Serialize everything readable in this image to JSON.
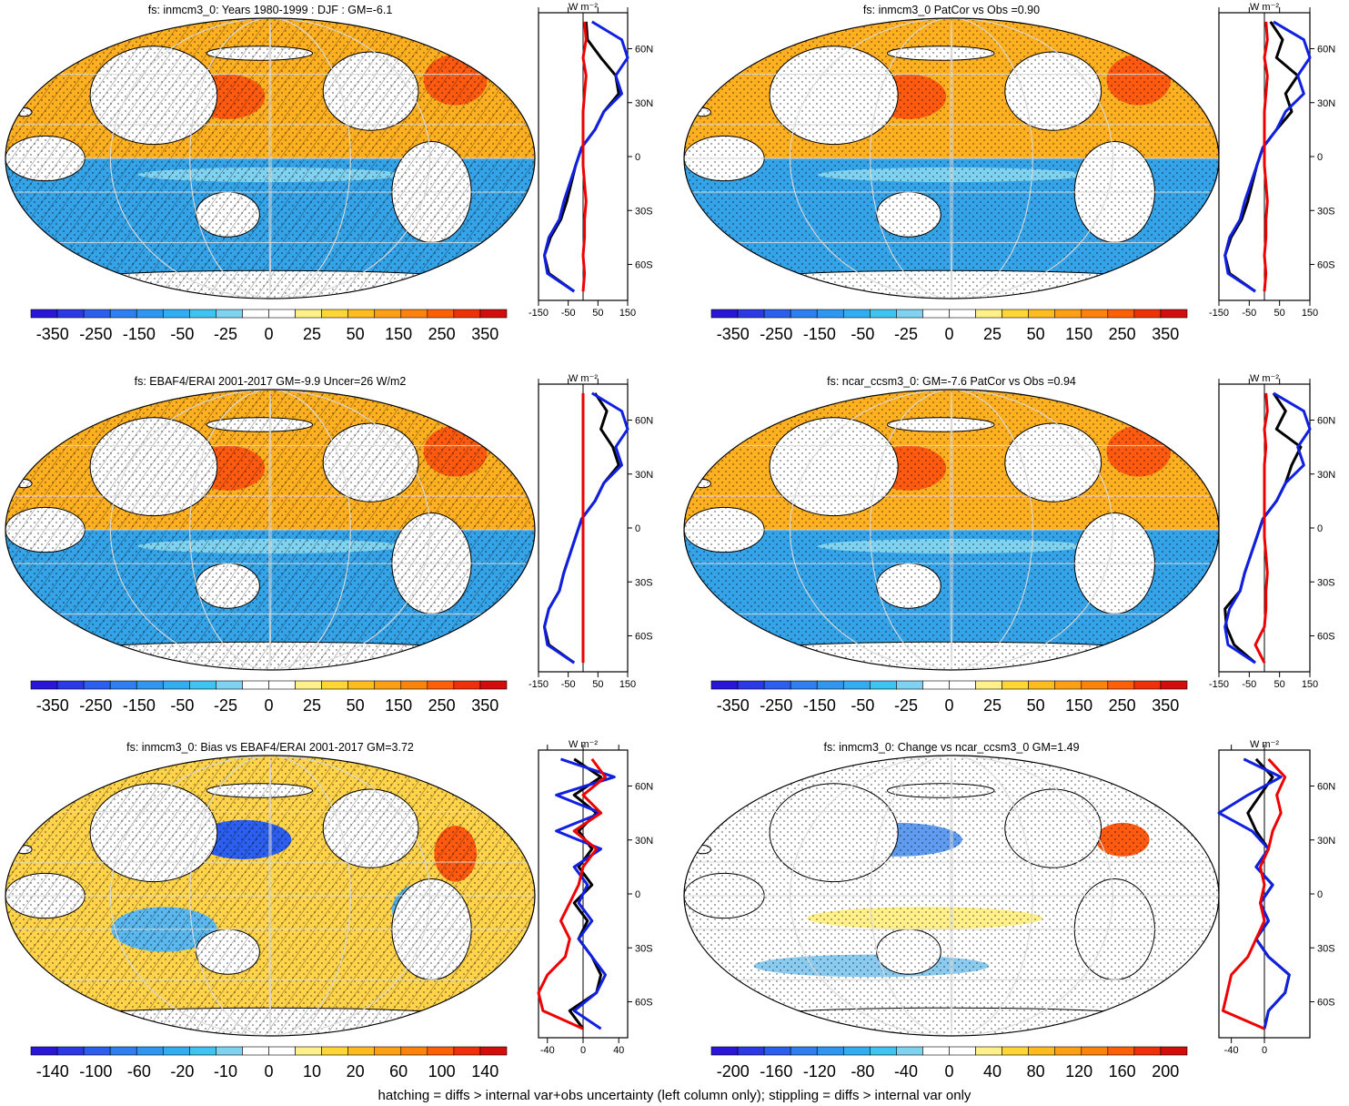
{
  "footnote": "hatching = diffs > internal var+obs uncertainty (left column only); stippling = diffs > internal var only",
  "palettes": {
    "full": [
      "#2a16d8",
      "#2b3ae6",
      "#2c5ff0",
      "#2f7ff2",
      "#2f97f2",
      "#30aef1",
      "#3ec4f0",
      "#7fd3f0",
      "#ffffff",
      "#ffffff",
      "#fff08a",
      "#ffd633",
      "#ffbc1e",
      "#ffa014",
      "#ff820a",
      "#ff6005",
      "#f03008",
      "#d40c0c"
    ],
    "bias": [
      "#2a16d8",
      "#2b3ae6",
      "#2c5ff0",
      "#2f7ff2",
      "#2f97f2",
      "#30aef1",
      "#3ec4f0",
      "#7fd3f0",
      "#ffffff",
      "#ffffff",
      "#fff08a",
      "#ffd633",
      "#ffbc1e",
      "#ffa014",
      "#ff820a",
      "#ff6005",
      "#f03008",
      "#d40c0c"
    ]
  },
  "line_colors": {
    "model": "#000000",
    "obs": "#1020e0",
    "diff": "#ee0000"
  },
  "map_colors": {
    "land": "#ffffff",
    "warm": "#ffb020",
    "cool": "#35a3e8",
    "hot": "#ff5a10",
    "grid": "#d8d8d8"
  },
  "panels": [
    {
      "title": "fs: inmcm3_0: Years 1980-1999 : DJF : GM=-6.1",
      "map_style": "full",
      "hatched": true,
      "colorbar_labels": [
        "-350",
        "-250",
        "-150",
        "-50",
        "-25",
        "0",
        "25",
        "50",
        "150",
        "250",
        "350"
      ],
      "profile": {
        "xticks": [
          "-150",
          "-50",
          "50",
          "150"
        ],
        "xlim": [
          -150,
          150
        ],
        "ylabels": [
          "60N",
          "30N",
          "0",
          "30S",
          "60S"
        ],
        "units": "W m⁻²"
      }
    },
    {
      "title": "fs: inmcm3_0 PatCor vs Obs =0.90",
      "map_style": "full",
      "hatched": false,
      "colorbar_labels": [
        "-350",
        "-250",
        "-150",
        "-50",
        "-25",
        "0",
        "25",
        "50",
        "150",
        "250",
        "350"
      ],
      "profile": {
        "xticks": [
          "-150",
          "-50",
          "50",
          "150"
        ],
        "xlim": [
          -150,
          150
        ],
        "ylabels": [
          "60N",
          "30N",
          "0",
          "30S",
          "60S"
        ],
        "units": "W m⁻²"
      }
    },
    {
      "title": "fs: EBAF4/ERAI 2001-2017 GM=-9.9 Uncer=26 W/m2",
      "map_style": "full",
      "hatched": true,
      "colorbar_labels": [
        "-350",
        "-250",
        "-150",
        "-50",
        "-25",
        "0",
        "25",
        "50",
        "150",
        "250",
        "350"
      ],
      "profile": {
        "xticks": [
          "-150",
          "-50",
          "50",
          "150"
        ],
        "xlim": [
          -150,
          150
        ],
        "ylabels": [
          "60N",
          "30N",
          "0",
          "30S",
          "60S"
        ],
        "units": "W m⁻²"
      }
    },
    {
      "title": "fs: ncar_ccsm3_0: GM=-7.6 PatCor vs Obs =0.94",
      "map_style": "full",
      "hatched": false,
      "colorbar_labels": [
        "-350",
        "-250",
        "-150",
        "-50",
        "-25",
        "0",
        "25",
        "50",
        "150",
        "250",
        "350"
      ],
      "profile": {
        "xticks": [
          "-150",
          "-50",
          "50",
          "150"
        ],
        "xlim": [
          -150,
          150
        ],
        "ylabels": [
          "60N",
          "30N",
          "0",
          "30S",
          "60S"
        ],
        "units": "W m⁻²"
      }
    },
    {
      "title": "fs: inmcm3_0: Bias vs EBAF4/ERAI 2001-2017 GM=3.72",
      "map_style": "bias",
      "hatched": true,
      "colorbar_labels": [
        "-140",
        "-100",
        "-60",
        "-20",
        "-10",
        "0",
        "10",
        "20",
        "60",
        "100",
        "140"
      ],
      "profile": {
        "xticks": [
          "-40",
          "0",
          "40"
        ],
        "xlim": [
          -50,
          50
        ],
        "ylabels": [
          "60N",
          "30N",
          "0",
          "30S",
          "60S"
        ],
        "units": "W m⁻²"
      }
    },
    {
      "title": "fs: inmcm3_0: Change vs ncar_ccsm3_0 GM=1.49",
      "map_style": "change",
      "hatched": false,
      "colorbar_labels": [
        "-200",
        "-160",
        "-120",
        "-80",
        "-40",
        "0",
        "40",
        "80",
        "120",
        "160",
        "200"
      ],
      "profile": {
        "xticks": [
          "-40",
          "0"
        ],
        "xlim": [
          -55,
          55
        ],
        "ylabels": [
          "60N",
          "30N",
          "0",
          "30S",
          "60S"
        ],
        "units": "W m⁻²"
      }
    }
  ],
  "chart_data": [
    {
      "type": "heatmap",
      "title": "fs: inmcm3_0: Years 1980-1999 : DJF : GM=-6.1",
      "projection": "Robinson, Pacific-centred",
      "colorbar": [
        -350,
        -250,
        -150,
        -50,
        -25,
        0,
        25,
        50,
        150,
        250,
        350
      ],
      "zonal_mean_profile": {
        "type": "line",
        "x_units": "W m-2",
        "xlim": [
          -150,
          150
        ],
        "lat": [
          75,
          65,
          55,
          45,
          35,
          25,
          15,
          5,
          -5,
          -15,
          -25,
          -35,
          -45,
          -55,
          -65,
          -75
        ],
        "series": [
          {
            "values": [
              10,
              15,
              60,
              110,
              120,
              70,
              40,
              -5,
              -25,
              -40,
              -55,
              -75,
              -110,
              -130,
              -115,
              -30
            ],
            "color": "#000000"
          },
          {
            "values": [
              30,
              130,
              150,
              110,
              130,
              70,
              40,
              -5,
              -25,
              -45,
              -65,
              -80,
              -115,
              -130,
              -120,
              -30
            ],
            "color": "#1020e0"
          },
          {
            "values": [
              5,
              10,
              0,
              10,
              5,
              0,
              0,
              0,
              0,
              5,
              10,
              5,
              5,
              0,
              5,
              0
            ],
            "color": "#ee0000"
          }
        ]
      }
    },
    {
      "type": "heatmap",
      "title": "fs: inmcm3_0 PatCor vs Obs =0.90",
      "projection": "Robinson, Pacific-centred",
      "colorbar": [
        -350,
        -250,
        -150,
        -50,
        -25,
        0,
        25,
        50,
        150,
        250,
        350
      ],
      "zonal_mean_profile": {
        "type": "line",
        "x_units": "W m-2",
        "xlim": [
          -150,
          150
        ],
        "lat": [
          75,
          65,
          55,
          45,
          35,
          25,
          15,
          5,
          -5,
          -15,
          -25,
          -35,
          -45,
          -55,
          -65,
          -75
        ],
        "series": [
          {
            "values": [
              20,
              60,
              40,
              110,
              70,
              90,
              40,
              -5,
              -25,
              -40,
              -55,
              -75,
              -110,
              -130,
              -115,
              -30
            ],
            "color": "#000000"
          },
          {
            "values": [
              30,
              130,
              150,
              110,
              130,
              70,
              40,
              -5,
              -25,
              -45,
              -65,
              -80,
              -115,
              -130,
              -120,
              -30
            ],
            "color": "#1020e0"
          },
          {
            "values": [
              5,
              10,
              0,
              10,
              5,
              0,
              0,
              0,
              0,
              5,
              10,
              5,
              5,
              0,
              5,
              0
            ],
            "color": "#ee0000"
          }
        ]
      }
    },
    {
      "type": "heatmap",
      "title": "fs: EBAF4/ERAI 2001-2017 GM=-9.9 Uncer=26 W/m2",
      "projection": "Robinson, Pacific-centred",
      "colorbar": [
        -350,
        -250,
        -150,
        -50,
        -25,
        0,
        25,
        50,
        150,
        250,
        350
      ],
      "zonal_mean_profile": {
        "type": "line",
        "x_units": "W m-2",
        "xlim": [
          -150,
          150
        ],
        "lat": [
          75,
          65,
          55,
          45,
          35,
          25,
          15,
          5,
          -5,
          -15,
          -25,
          -35,
          -45,
          -55,
          -65,
          -75
        ],
        "series": [
          {
            "values": [
              40,
              80,
              60,
              100,
              120,
              70,
              40,
              -5,
              -25,
              -45,
              -65,
              -80,
              -115,
              -130,
              -115,
              -30
            ],
            "color": "#000000"
          },
          {
            "values": [
              30,
              130,
              150,
              110,
              130,
              70,
              40,
              -5,
              -25,
              -45,
              -65,
              -80,
              -115,
              -130,
              -120,
              -30
            ],
            "color": "#1020e0"
          },
          {
            "values": [
              0,
              0,
              0,
              0,
              0,
              0,
              0,
              0,
              0,
              0,
              0,
              0,
              0,
              0,
              0,
              0
            ],
            "color": "#ee0000"
          }
        ]
      }
    },
    {
      "type": "heatmap",
      "title": "fs: ncar_ccsm3_0: GM=-7.6 PatCor vs Obs =0.94",
      "projection": "Robinson, Pacific-centred",
      "colorbar": [
        -350,
        -250,
        -150,
        -50,
        -25,
        0,
        25,
        50,
        150,
        250,
        350
      ],
      "zonal_mean_profile": {
        "type": "line",
        "x_units": "W m-2",
        "xlim": [
          -150,
          150
        ],
        "lat": [
          75,
          65,
          55,
          45,
          35,
          25,
          15,
          5,
          -5,
          -15,
          -25,
          -35,
          -45,
          -55,
          -65,
          -75
        ],
        "series": [
          {
            "values": [
              30,
              70,
              40,
              120,
              90,
              70,
              40,
              -5,
              -25,
              -45,
              -65,
              -80,
              -130,
              -125,
              -100,
              -30
            ],
            "color": "#000000"
          },
          {
            "values": [
              30,
              130,
              150,
              110,
              130,
              70,
              40,
              -5,
              -25,
              -45,
              -65,
              -80,
              -115,
              -130,
              -120,
              -30
            ],
            "color": "#1020e0"
          },
          {
            "values": [
              5,
              10,
              0,
              5,
              0,
              0,
              0,
              0,
              0,
              5,
              10,
              5,
              5,
              0,
              -30,
              0
            ],
            "color": "#ee0000"
          }
        ]
      }
    },
    {
      "type": "heatmap",
      "title": "fs: inmcm3_0: Bias vs EBAF4/ERAI 2001-2017 GM=3.72",
      "projection": "Robinson, Pacific-centred",
      "colorbar": [
        -140,
        -100,
        -60,
        -20,
        -10,
        0,
        10,
        20,
        60,
        100,
        140
      ],
      "zonal_mean_profile": {
        "type": "line",
        "x_units": "W m-2",
        "xlim": [
          -50,
          50
        ],
        "lat": [
          75,
          65,
          55,
          45,
          35,
          25,
          15,
          5,
          -5,
          -15,
          -25,
          -35,
          -45,
          -55,
          -65,
          -75
        ],
        "series": [
          {
            "values": [
              -10,
              20,
              -10,
              15,
              -5,
              10,
              -5,
              10,
              -10,
              5,
              -5,
              10,
              20,
              15,
              -15,
              0
            ],
            "color": "#000000"
          },
          {
            "values": [
              -25,
              35,
              -30,
              20,
              -30,
              20,
              -10,
              5,
              -5,
              10,
              -5,
              10,
              25,
              15,
              -10,
              20
            ],
            "color": "#1020e0"
          },
          {
            "values": [
              10,
              25,
              0,
              20,
              -10,
              15,
              0,
              -5,
              -15,
              -25,
              -15,
              -20,
              -40,
              -50,
              -45,
              0
            ],
            "color": "#ee0000"
          }
        ]
      }
    },
    {
      "type": "heatmap",
      "title": "fs: inmcm3_0: Change vs ncar_ccsm3_0 GM=1.49",
      "projection": "Robinson, Pacific-centred",
      "colorbar": [
        -200,
        -160,
        -120,
        -80,
        -40,
        0,
        40,
        80,
        120,
        160,
        200
      ],
      "zonal_mean_profile": {
        "type": "line",
        "x_units": "W m-2",
        "xlim": [
          -55,
          55
        ],
        "lat": [
          75,
          65,
          55,
          45,
          35,
          25,
          15,
          5,
          -5,
          -15,
          -25,
          -35,
          -45,
          -55,
          -65,
          -75
        ],
        "series": [
          {
            "values": [
              -10,
              10,
              -5,
              -20,
              -10,
              5,
              -10,
              10,
              -5,
              5,
              -10,
              5,
              30,
              25,
              5,
              0
            ],
            "color": "#000000"
          },
          {
            "values": [
              -25,
              20,
              -20,
              -55,
              -15,
              5,
              -10,
              10,
              -5,
              5,
              -10,
              5,
              30,
              25,
              5,
              0
            ],
            "color": "#1020e0"
          },
          {
            "values": [
              5,
              25,
              15,
              20,
              10,
              5,
              -5,
              0,
              -5,
              0,
              -10,
              -20,
              -40,
              -45,
              -50,
              0
            ],
            "color": "#ee0000"
          }
        ]
      }
    }
  ]
}
